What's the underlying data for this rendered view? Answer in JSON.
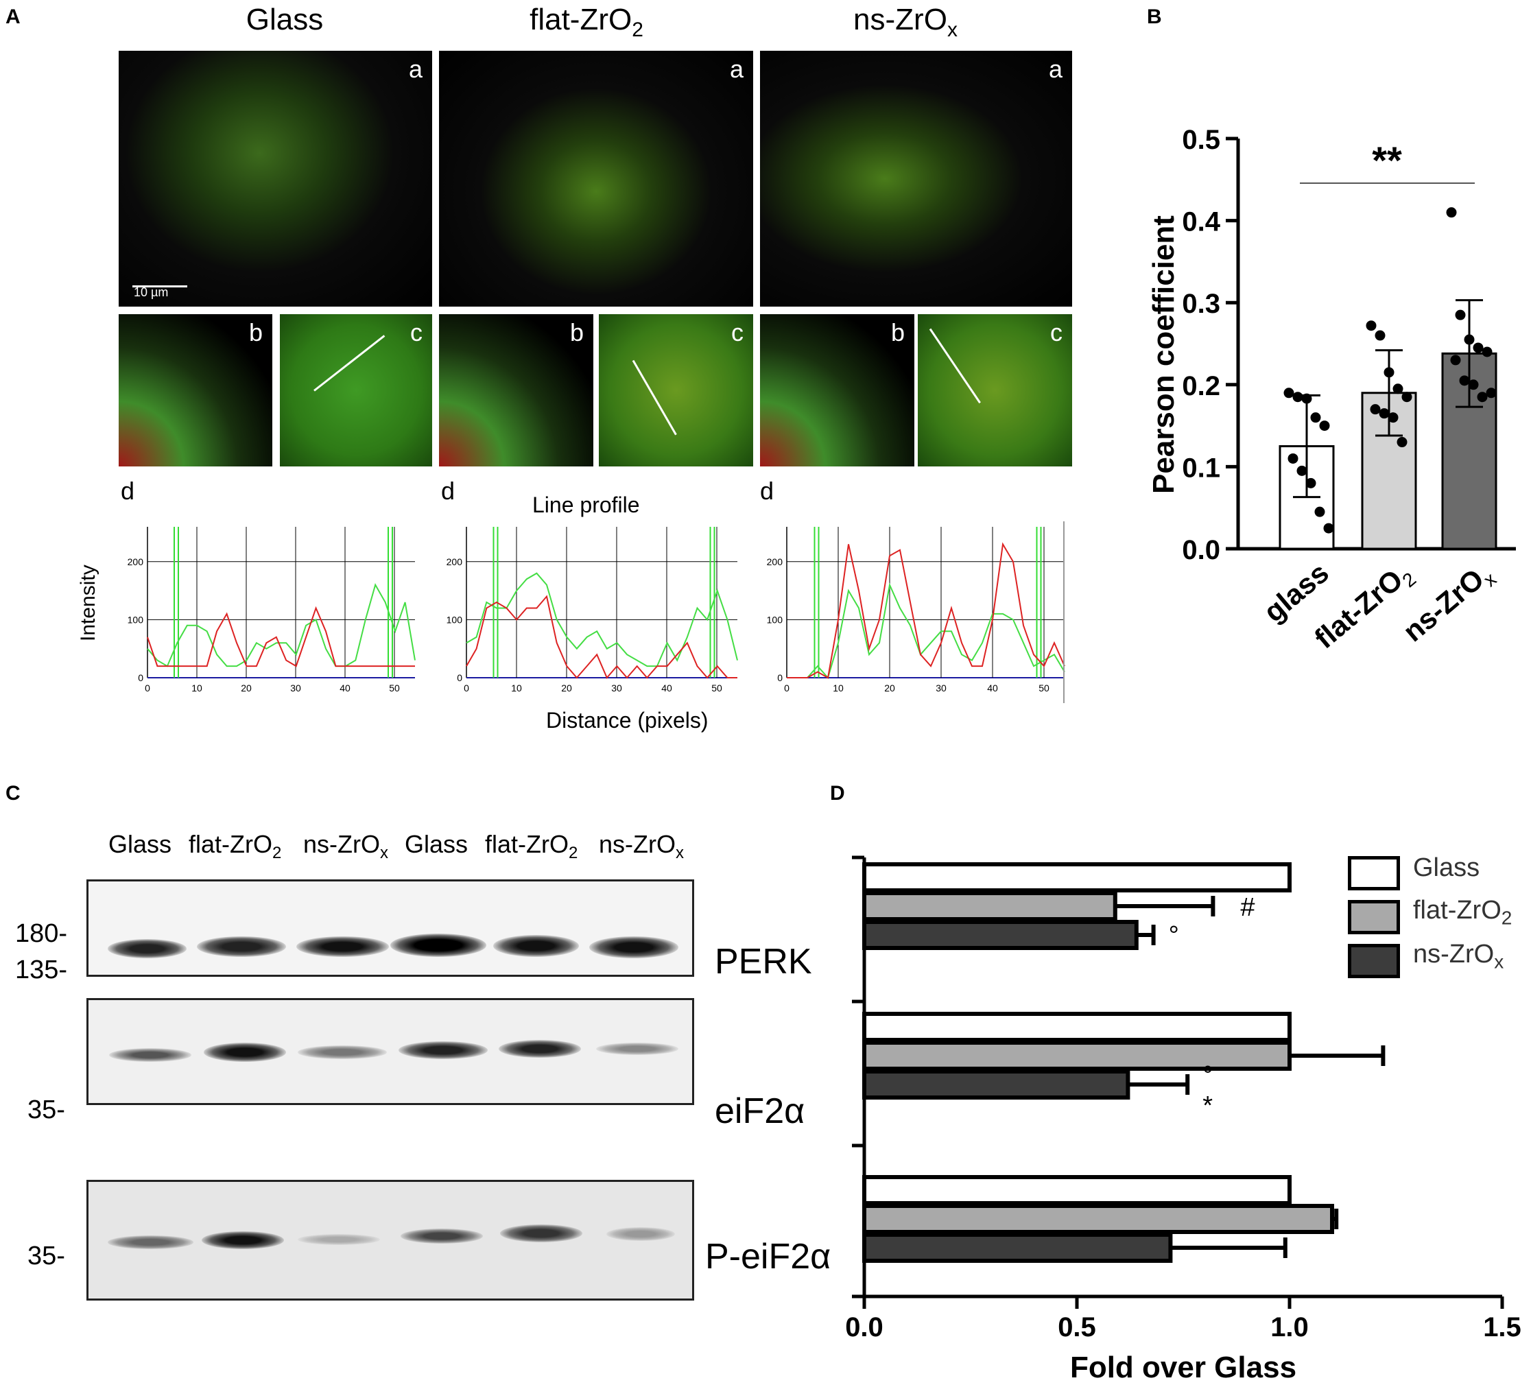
{
  "panel_letters": {
    "A": "A",
    "B": "B",
    "C": "C",
    "D": "D"
  },
  "panelA": {
    "column_titles": [
      "Glass",
      "flat-ZrO",
      "ns-ZrO"
    ],
    "column_subscripts": [
      "",
      "2",
      "x"
    ],
    "sub_a": "a",
    "sub_b": "b",
    "sub_c": "c",
    "sub_d": "d",
    "scale_bar": "10 µm",
    "line_profile_title": "Line profile",
    "ylabel": "Intensity",
    "xlabel": "Distance (pixels)",
    "y_ticks": [
      "0",
      "100",
      "200"
    ],
    "x_ticks_1": [
      "0",
      "10",
      "20",
      "30",
      "40",
      "50"
    ],
    "x_ticks_3": [
      "0",
      "10",
      "20",
      "30",
      "40",
      "50"
    ]
  },
  "panelC": {
    "lanes": [
      "Glass",
      "flat-ZrO",
      "ns-ZrO",
      "Glass",
      "flat-ZrO",
      "ns-ZrO"
    ],
    "lane_subs": [
      "",
      "2",
      "x",
      "",
      "2",
      "x"
    ],
    "blots": [
      {
        "label": "PERK",
        "markers": [
          "180-",
          "135-"
        ]
      },
      {
        "label": "eiF2α",
        "markers": [
          "35-"
        ]
      },
      {
        "label": "P-eiF2α",
        "markers": [
          "35-"
        ]
      }
    ]
  },
  "chart_data": [
    {
      "type": "bar",
      "panel": "B",
      "categories": [
        "glass",
        "flat-ZrO2",
        "ns-ZrOx"
      ],
      "values": [
        0.125,
        0.19,
        0.238
      ],
      "error": [
        0.062,
        0.052,
        0.065
      ],
      "points": [
        [
          0.19,
          0.185,
          0.183,
          0.16,
          0.15,
          0.11,
          0.095,
          0.08,
          0.045,
          0.025
        ],
        [
          0.272,
          0.26,
          0.215,
          0.195,
          0.185,
          0.17,
          0.165,
          0.16,
          0.13
        ],
        [
          0.41,
          0.285,
          0.255,
          0.245,
          0.24,
          0.23,
          0.205,
          0.2,
          0.185,
          0.19
        ]
      ],
      "ylabel": "Pearson coefficient",
      "ylim": [
        0,
        0.5
      ],
      "yticks": [
        "0.0",
        "0.1",
        "0.2",
        "0.3",
        "0.4",
        "0.5"
      ],
      "significance": "**",
      "colors": [
        "#ffffff",
        "#d3d3d3",
        "#6b6b6b"
      ]
    },
    {
      "type": "bar",
      "panel": "D",
      "orientation": "horizontal",
      "groups": [
        "PERK",
        "eiF2α",
        "P-eiF2α"
      ],
      "series": [
        {
          "name": "Glass",
          "values": [
            1.0,
            1.0,
            1.0
          ],
          "error": [
            0,
            0,
            0
          ]
        },
        {
          "name": "flat-ZrO2",
          "values": [
            0.59,
            1.0,
            1.1
          ],
          "error": [
            0.23,
            0.22,
            0.01
          ]
        },
        {
          "name": "ns-ZrOx",
          "values": [
            0.64,
            0.62,
            0.72
          ],
          "error": [
            0.04,
            0.14,
            0.27
          ]
        }
      ],
      "annotations": [
        "#",
        "°",
        "°",
        "*"
      ],
      "xlabel": "Fold over Glass",
      "xlim": [
        0,
        1.5
      ],
      "xticks": [
        "0.0",
        "0.5",
        "1.0",
        "1.5"
      ],
      "legend": {
        "entries": [
          "Glass",
          "flat-ZrO",
          "ns-ZrO"
        ],
        "subs": [
          "",
          "2",
          "x"
        ],
        "placement": "top-right"
      },
      "colors": [
        "#ffffff",
        "#a9a9a9",
        "#3c3c3c"
      ]
    },
    {
      "type": "line",
      "panel": "A-d",
      "plots": [
        {
          "red": [
            70,
            20,
            20,
            20,
            20,
            20,
            20,
            80,
            110,
            60,
            20,
            20,
            60,
            70,
            30,
            20,
            70,
            120,
            80,
            20,
            20,
            20,
            20,
            20,
            20,
            20,
            20,
            20
          ],
          "green": [
            50,
            30,
            20,
            60,
            90,
            90,
            80,
            40,
            20,
            20,
            30,
            60,
            50,
            60,
            60,
            40,
            90,
            100,
            50,
            20,
            20,
            30,
            100,
            160,
            130,
            80,
            130,
            30
          ]
        },
        {
          "red": [
            20,
            50,
            120,
            130,
            120,
            100,
            120,
            120,
            140,
            60,
            20,
            0,
            20,
            40,
            0,
            20,
            0,
            20,
            0,
            20,
            20,
            40,
            60,
            20,
            0,
            20,
            0,
            0
          ],
          "green": [
            60,
            70,
            130,
            120,
            120,
            150,
            170,
            180,
            160,
            100,
            70,
            50,
            70,
            80,
            50,
            60,
            40,
            30,
            20,
            20,
            60,
            30,
            70,
            120,
            100,
            150,
            100,
            30
          ]
        },
        {
          "red": [
            0,
            0,
            0,
            10,
            0,
            100,
            230,
            150,
            50,
            100,
            210,
            220,
            130,
            40,
            20,
            60,
            120,
            60,
            20,
            20,
            100,
            230,
            200,
            90,
            40,
            20,
            60,
            20
          ],
          "green": [
            0,
            0,
            0,
            20,
            0,
            60,
            150,
            120,
            40,
            60,
            160,
            120,
            90,
            40,
            60,
            80,
            80,
            40,
            30,
            60,
            110,
            110,
            100,
            60,
            20,
            30,
            40,
            10
          ]
        }
      ]
    }
  ]
}
